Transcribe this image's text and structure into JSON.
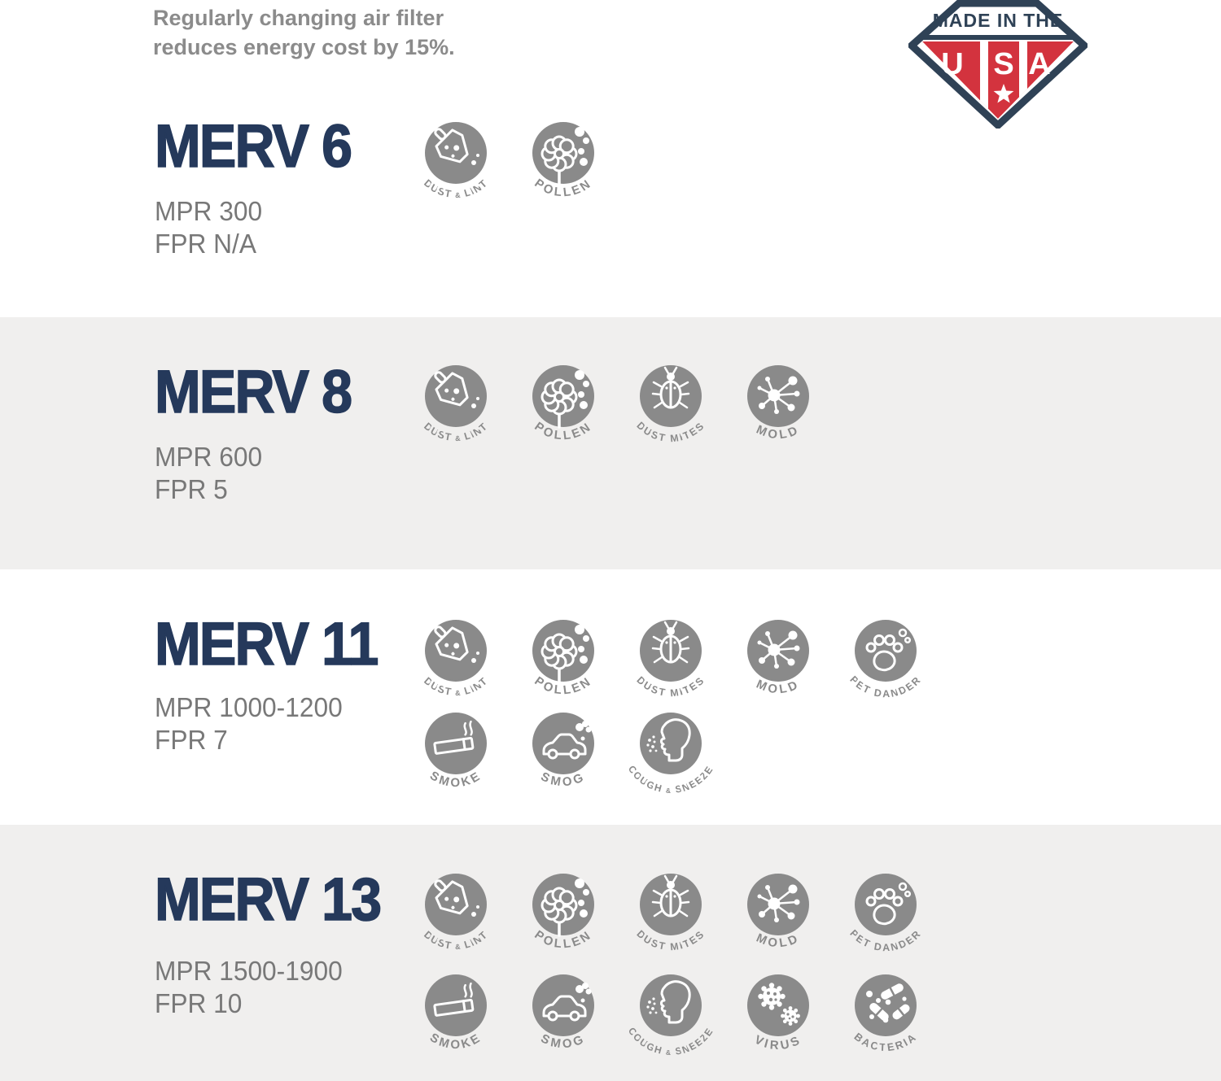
{
  "header": {
    "tagline_line1": "Regularly changing air filter",
    "tagline_line2": "reduces energy cost by 15%."
  },
  "badge": {
    "top_text": "MADE IN THE",
    "letters": [
      "U",
      "S",
      "A"
    ]
  },
  "colors": {
    "heading_navy": "#25395B",
    "badge_navy": "#2F4256",
    "badge_red": "#D3333E",
    "icon_gray": "#8A8A8A",
    "detail_gray": "#787878",
    "tagline_gray": "#8B8B8B",
    "band_gray": "#F0EFEE"
  },
  "sections": [
    {
      "title": "MERV 6",
      "mpr": "MPR 300",
      "fpr": "FPR N/A",
      "background": "white",
      "icon_rows": [
        [
          "dust-lint",
          "pollen"
        ]
      ]
    },
    {
      "title": "MERV 8",
      "mpr": "MPR 600",
      "fpr": "FPR 5",
      "background": "gray",
      "icon_rows": [
        [
          "dust-lint",
          "pollen",
          "dust-mites",
          "mold"
        ]
      ]
    },
    {
      "title": "MERV 11",
      "mpr": "MPR 1000-1200",
      "fpr": "FPR 7",
      "background": "white",
      "icon_rows": [
        [
          "dust-lint",
          "pollen",
          "dust-mites",
          "mold",
          "pet-dander"
        ],
        [
          "smoke",
          "smog",
          "cough-sneeze"
        ]
      ]
    },
    {
      "title": "MERV 13",
      "mpr": "MPR 1500-1900",
      "fpr": "FPR 10",
      "background": "gray",
      "icon_rows": [
        [
          "dust-lint",
          "pollen",
          "dust-mites",
          "mold",
          "pet-dander"
        ],
        [
          "smoke",
          "smog",
          "cough-sneeze",
          "virus",
          "bacteria"
        ]
      ]
    }
  ],
  "icon_labels": {
    "dust-lint": "DUST & LINT",
    "pollen": "POLLEN",
    "dust-mites": "DUST MITES",
    "mold": "MOLD",
    "pet-dander": "PET DANDER",
    "smoke": "SMOKE",
    "smog": "SMOG",
    "cough-sneeze": "COUGH & SNEEZE",
    "virus": "VIRUS",
    "bacteria": "BACTERIA"
  }
}
